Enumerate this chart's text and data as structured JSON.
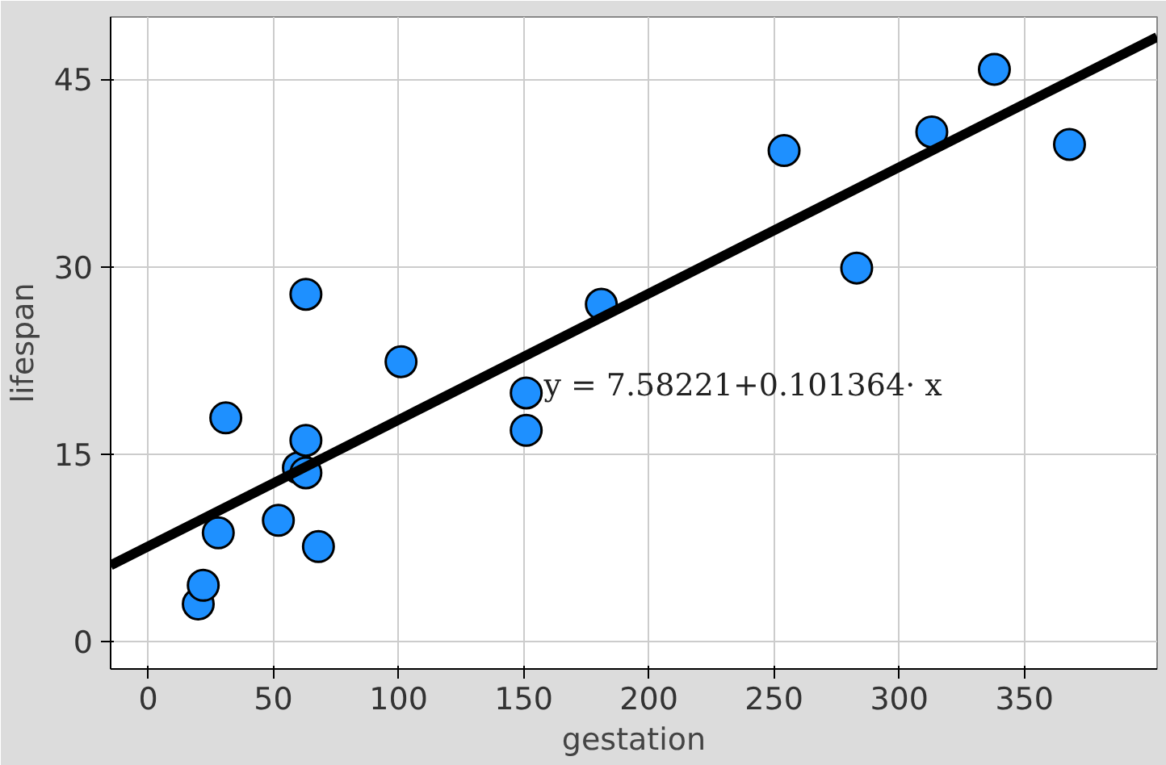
{
  "chart_data": {
    "type": "scatter",
    "xlabel": "gestation",
    "ylabel": "lifespan",
    "xlim": [
      -15,
      403
    ],
    "ylim": [
      -2.2,
      50
    ],
    "xticks": [
      0,
      50,
      100,
      150,
      200,
      250,
      300,
      350
    ],
    "yticks": [
      0,
      15,
      30,
      45
    ],
    "grid": true,
    "series": [
      {
        "marker": "circle",
        "color": "#1e90ff",
        "x": [
          20,
          22,
          28,
          31,
          52,
          60,
          63,
          63,
          63,
          68,
          101,
          151,
          151,
          181,
          254,
          283,
          313,
          338,
          368
        ],
        "values": [
          3,
          4.5,
          8.7,
          17.9,
          9.7,
          13.9,
          13.5,
          16.1,
          27.8,
          7.6,
          22.4,
          19.9,
          16.9,
          27,
          39.3,
          29.9,
          40.8,
          45.8,
          39.8
        ]
      },
      {
        "type": "line",
        "color": "#000000",
        "x": [
          -15,
          403
        ],
        "values": [
          6.1,
          48.4
        ]
      }
    ],
    "annotations": [
      {
        "text": "y = 7.58221+0.101364· x",
        "x": 158,
        "y": 20.5
      }
    ]
  }
}
